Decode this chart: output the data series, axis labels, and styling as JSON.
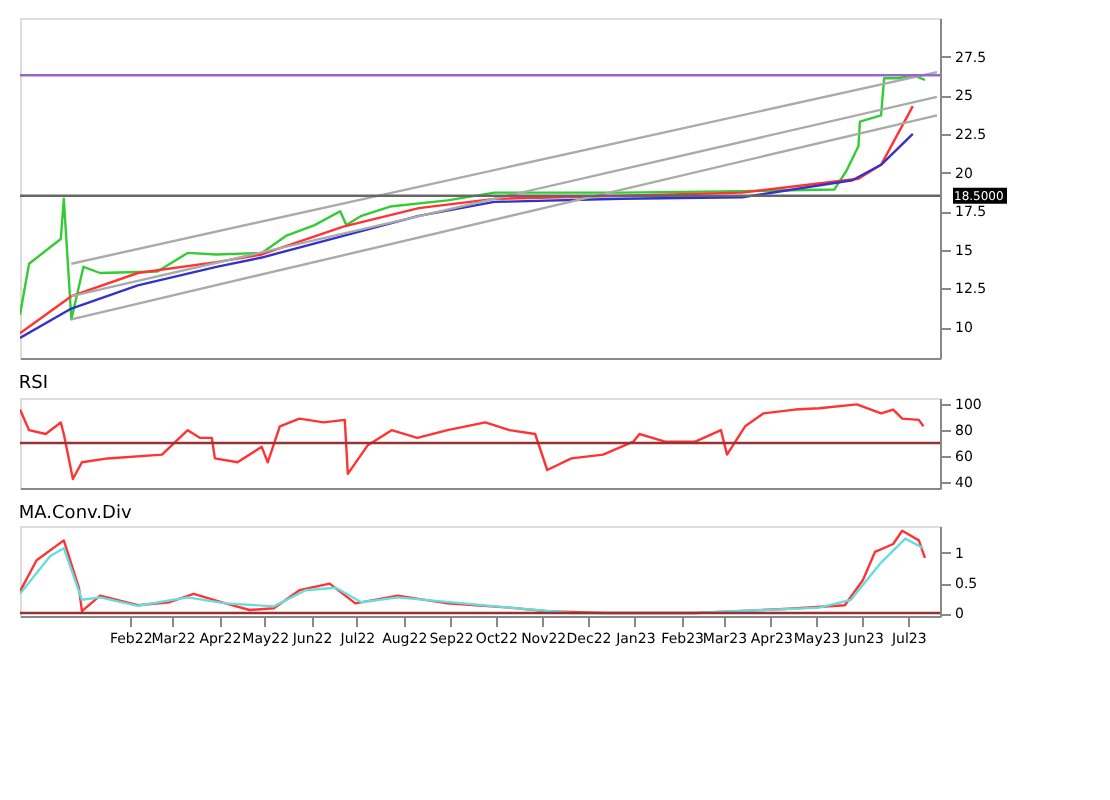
{
  "chart_data": [
    {
      "type": "line",
      "xlim": [
        "2021-11-20",
        "2023-07-22"
      ],
      "ylim": [
        8,
        30
      ],
      "yticks": [
        10,
        12.5,
        15,
        17.5,
        20,
        22.5,
        25,
        27.5
      ],
      "grid": false,
      "tick_labels": "y",
      "line_style": "solid",
      "marker": "none",
      "series": [
        {
          "color": "#33cc33",
          "x": [
            "2021-11-20",
            "2021-11-26",
            "2021-12-17",
            "2021-12-19",
            "2021-12-24",
            "2022-01-01",
            "2022-01-12",
            "2022-02-19",
            "2022-03-11",
            "2022-03-30",
            "2022-04-29",
            "2022-05-15",
            "2022-06-03",
            "2022-06-20",
            "2022-06-24",
            "2022-07-04",
            "2022-07-23",
            "2022-08-30",
            "2022-09-30",
            "2022-12-23",
            "2023-03-13",
            "2023-05-13",
            "2023-05-21",
            "2023-05-29",
            "2023-05-30",
            "2023-06-13",
            "2023-06-15",
            "2023-06-25",
            "2023-07-04",
            "2023-07-12"
          ],
          "values": [
            10.8,
            14.1,
            15.7,
            18.3,
            10.5,
            13.9,
            13.5,
            13.6,
            14.8,
            14.7,
            14.8,
            15.9,
            16.6,
            17.5,
            16.6,
            17.2,
            17.8,
            18.2,
            18.7,
            18.7,
            18.8,
            18.9,
            20.1,
            21.7,
            23.3,
            23.7,
            26.1,
            26.1,
            26.3,
            26.0
          ]
        },
        {
          "color": "#ff3333",
          "x": [
            "2021-11-20",
            "2021-12-24",
            "2022-02-06",
            "2022-03-30",
            "2022-04-29",
            "2022-06-22",
            "2022-08-11",
            "2022-09-30",
            "2022-12-23",
            "2023-03-13",
            "2023-05-29",
            "2023-06-13",
            "2023-07-04"
          ],
          "values": [
            9.6,
            12.0,
            13.5,
            14.2,
            14.7,
            16.5,
            17.7,
            18.3,
            18.5,
            18.7,
            19.6,
            20.5,
            24.3
          ]
        },
        {
          "color": "#3333cc",
          "x": [
            "2021-11-20",
            "2021-12-24",
            "2022-02-06",
            "2022-03-30",
            "2022-04-29",
            "2022-06-22",
            "2022-08-11",
            "2022-09-30",
            "2022-12-23",
            "2023-03-13",
            "2023-05-25",
            "2023-06-13",
            "2023-07-04"
          ],
          "values": [
            9.3,
            11.2,
            12.7,
            13.9,
            14.5,
            15.9,
            17.2,
            18.1,
            18.3,
            18.4,
            19.5,
            20.5,
            22.5
          ]
        },
        {
          "color": "#aaaaaa",
          "x": [
            "2021-12-24",
            "2023-07-20"
          ],
          "values": [
            14.1,
            26.5
          ]
        },
        {
          "color": "#aaaaaa",
          "x": [
            "2021-12-24",
            "2023-07-20"
          ],
          "values": [
            12.0,
            24.9
          ]
        },
        {
          "color": "#aaaaaa",
          "x": [
            "2021-12-24",
            "2023-07-20"
          ],
          "values": [
            10.5,
            23.7
          ]
        }
      ],
      "ref_lines": [
        {
          "axis": "y",
          "value": 26.3,
          "color": "#9966cc"
        },
        {
          "axis": "y",
          "value": 18.5,
          "label": "18.5000",
          "color": "#666666"
        }
      ]
    },
    {
      "type": "line",
      "title": "RSI",
      "xlim": [
        "2021-11-20",
        "2023-07-22"
      ],
      "ylim": [
        35,
        105
      ],
      "yticks": [
        40,
        60,
        80,
        100
      ],
      "grid": false,
      "tick_labels": "y",
      "series": [
        {
          "color": "#ff3333",
          "x": [
            "2021-11-20",
            "2021-11-26",
            "2021-12-07",
            "2021-12-17",
            "2021-12-19",
            "2021-12-25",
            "2021-12-31",
            "2022-01-17",
            "2022-02-22",
            "2022-03-11",
            "2022-03-19",
            "2022-03-27",
            "2022-03-29",
            "2022-04-13",
            "2022-04-29",
            "2022-05-03",
            "2022-05-11",
            "2022-05-24",
            "2022-06-09",
            "2022-06-23",
            "2022-06-25",
            "2022-07-08",
            "2022-07-24",
            "2022-08-10",
            "2022-08-30",
            "2022-09-24",
            "2022-10-10",
            "2022-10-27",
            "2022-11-04",
            "2022-11-20",
            "2022-12-11",
            "2022-12-31",
            "2023-01-04",
            "2023-01-21",
            "2023-02-10",
            "2023-02-27",
            "2023-03-03",
            "2023-03-15",
            "2023-03-27",
            "2023-04-17",
            "2023-05-03",
            "2023-05-28",
            "2023-06-13",
            "2023-06-21",
            "2023-06-27",
            "2023-07-08",
            "2023-07-11"
          ],
          "values": [
            96,
            80,
            77,
            86,
            77,
            42,
            55,
            58,
            61,
            80,
            74,
            74,
            58,
            55,
            67,
            55,
            83,
            89,
            86,
            88,
            46,
            68,
            80,
            74,
            80,
            86,
            80,
            77,
            49,
            58,
            61,
            71,
            77,
            71,
            71,
            80,
            61,
            83,
            93,
            96,
            97,
            100,
            93,
            96,
            89,
            88,
            83
          ]
        }
      ],
      "ref_lines": [
        {
          "axis": "y",
          "value": 70,
          "color": "#993333"
        }
      ]
    },
    {
      "type": "line",
      "title": "MA.Conv.Div",
      "xlim": [
        "2021-11-20",
        "2023-07-22"
      ],
      "ylim": [
        -0.05,
        1.45
      ],
      "yticks": [
        0,
        0.5,
        1
      ],
      "grid": false,
      "xticks": [
        {
          "value": "2022-02",
          "label": "Feb22"
        },
        {
          "value": "2022-03",
          "label": "Mar22"
        },
        {
          "value": "2022-04",
          "label": "Apr22"
        },
        {
          "value": "2022-05",
          "label": "May22"
        },
        {
          "value": "2022-06",
          "label": "Jun22"
        },
        {
          "value": "2022-07",
          "label": "Jul22"
        },
        {
          "value": "2022-08",
          "label": "Aug22"
        },
        {
          "value": "2022-09",
          "label": "Sep22"
        },
        {
          "value": "2022-10",
          "label": "Oct22"
        },
        {
          "value": "2022-11",
          "label": "Nov22"
        },
        {
          "value": "2022-12",
          "label": "Dec22"
        },
        {
          "value": "2023-01",
          "label": "Jan23"
        },
        {
          "value": "2023-02",
          "label": "Feb23"
        },
        {
          "value": "2023-03",
          "label": "Mar23"
        },
        {
          "value": "2023-04",
          "label": "Apr23"
        },
        {
          "value": "2023-05",
          "label": "May23"
        },
        {
          "value": "2023-06",
          "label": "Jun23"
        },
        {
          "value": "2023-07",
          "label": "Jul23"
        }
      ],
      "series": [
        {
          "color": "#ff3333",
          "x": [
            "2021-11-20",
            "2021-12-01",
            "2021-12-19",
            "2021-12-29",
            "2021-12-31",
            "2022-01-12",
            "2022-02-06",
            "2022-02-27",
            "2022-03-15",
            "2022-04-05",
            "2022-04-21",
            "2022-05-07",
            "2022-05-24",
            "2022-06-13",
            "2022-06-30",
            "2022-07-28",
            "2022-08-30",
            "2022-10-10",
            "2022-11-04",
            "2022-12-11",
            "2023-02-10",
            "2023-04-13",
            "2023-05-20",
            "2023-06-01",
            "2023-06-09",
            "2023-06-21",
            "2023-06-27",
            "2023-07-08",
            "2023-07-12"
          ],
          "values": [
            0.36,
            0.88,
            1.21,
            0.42,
            0.03,
            0.29,
            0.13,
            0.18,
            0.32,
            0.16,
            0.05,
            0.08,
            0.38,
            0.49,
            0.16,
            0.29,
            0.16,
            0.09,
            0.03,
            0,
            0,
            0.07,
            0.13,
            0.55,
            1.02,
            1.15,
            1.37,
            1.21,
            0.92
          ]
        },
        {
          "color": "#66dddd",
          "x": [
            "2021-11-20",
            "2021-12-10",
            "2021-12-19",
            "2021-12-31",
            "2022-01-12",
            "2022-02-06",
            "2022-03-11",
            "2022-04-05",
            "2022-05-07",
            "2022-05-28",
            "2022-06-17",
            "2022-07-04",
            "2022-07-28",
            "2022-10-10",
            "2022-11-20",
            "2023-02-10",
            "2023-05-03",
            "2023-05-24",
            "2023-06-13",
            "2023-06-29",
            "2023-07-11"
          ],
          "values": [
            0.32,
            0.95,
            1.08,
            0.22,
            0.26,
            0.12,
            0.26,
            0.16,
            0.11,
            0.38,
            0.42,
            0.18,
            0.26,
            0.09,
            0,
            0,
            0.09,
            0.22,
            0.84,
            1.24,
            1.08
          ]
        }
      ],
      "ref_lines": [
        {
          "axis": "y",
          "value": 0,
          "color": "#993333"
        }
      ]
    }
  ]
}
